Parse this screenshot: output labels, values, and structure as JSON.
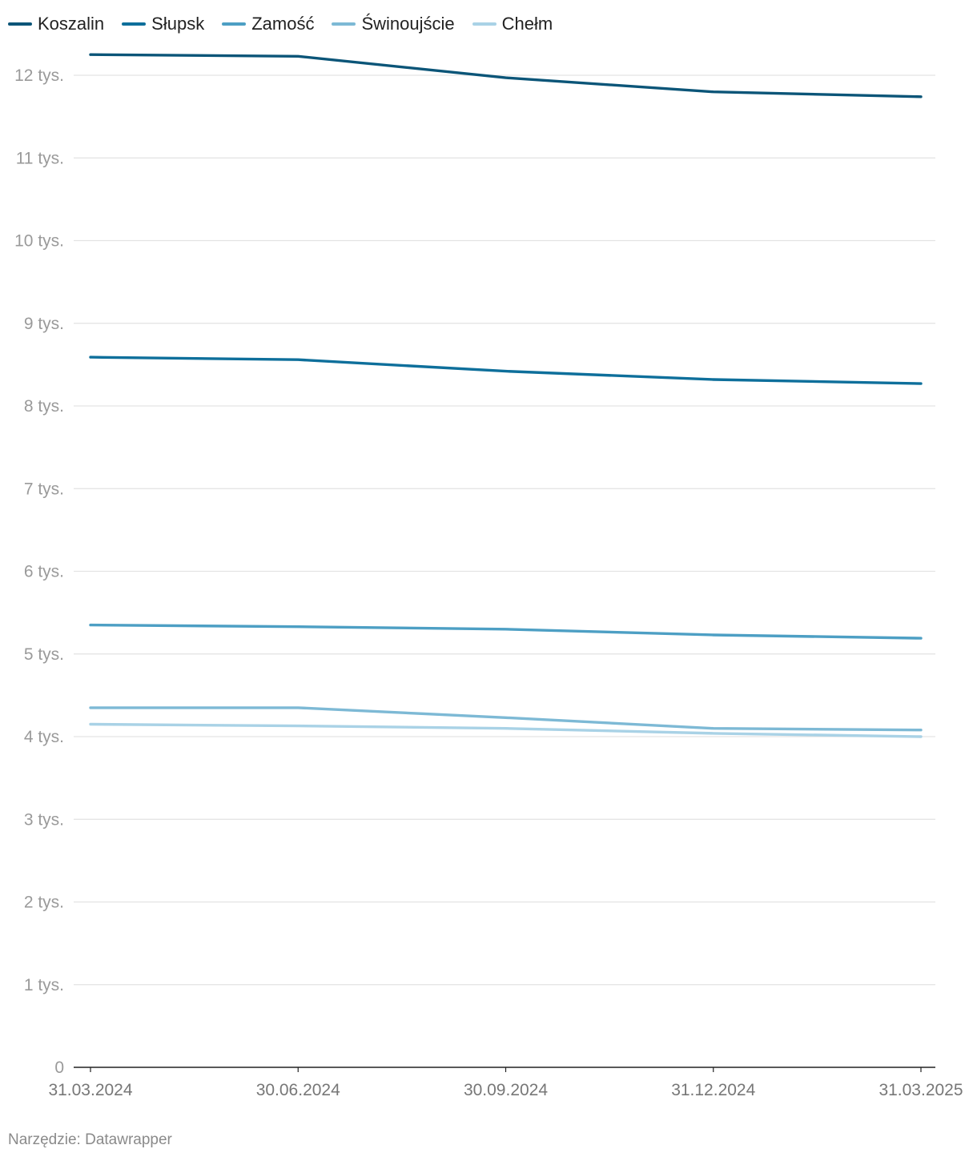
{
  "chart_data": {
    "type": "line",
    "title": "",
    "xlabel": "",
    "ylabel": "",
    "x": [
      "31.03.2024",
      "30.06.2024",
      "30.09.2024",
      "31.12.2024",
      "31.03.2025"
    ],
    "y_ticks": [
      {
        "value": 0,
        "label": "0"
      },
      {
        "value": 1000,
        "label": "1 tys."
      },
      {
        "value": 2000,
        "label": "2 tys."
      },
      {
        "value": 3000,
        "label": "3 tys."
      },
      {
        "value": 4000,
        "label": "4 tys."
      },
      {
        "value": 5000,
        "label": "5 tys."
      },
      {
        "value": 6000,
        "label": "6 tys."
      },
      {
        "value": 7000,
        "label": "7 tys."
      },
      {
        "value": 8000,
        "label": "8 tys."
      },
      {
        "value": 9000,
        "label": "9 tys."
      },
      {
        "value": 10000,
        "label": "10 tys."
      },
      {
        "value": 11000,
        "label": "11 tys."
      },
      {
        "value": 12000,
        "label": "12 tys."
      }
    ],
    "ylim": [
      0,
      12300
    ],
    "grid": true,
    "legend_position": "top-left",
    "series": [
      {
        "name": "Koszalin",
        "color": "#0b5578",
        "values": [
          12250,
          12230,
          11970,
          11800,
          11740
        ]
      },
      {
        "name": "Słupsk",
        "color": "#0e6f9b",
        "values": [
          8590,
          8560,
          8420,
          8320,
          8270
        ]
      },
      {
        "name": "Zamość",
        "color": "#4d9fc4",
        "values": [
          5350,
          5330,
          5300,
          5230,
          5190
        ]
      },
      {
        "name": "Świnoujście",
        "color": "#7db9d5",
        "values": [
          4350,
          4350,
          4230,
          4100,
          4080
        ]
      },
      {
        "name": "Chełm",
        "color": "#a9d2e6",
        "values": [
          4150,
          4130,
          4100,
          4040,
          4000
        ]
      }
    ]
  },
  "source": "Narzędzie: Datawrapper"
}
